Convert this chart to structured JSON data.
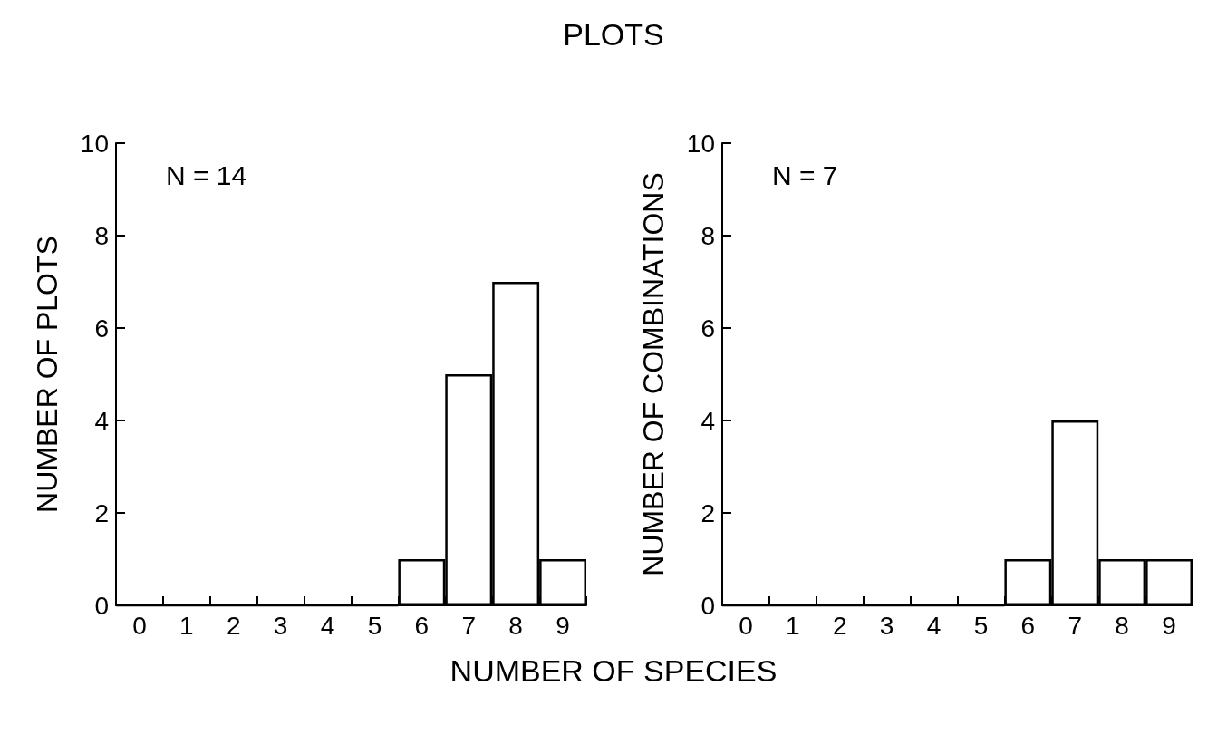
{
  "chart_data": [
    {
      "type": "bar",
      "title": "PLOTS",
      "xlabel": "NUMBER OF SPECIES",
      "ylabel": "NUMBER OF PLOTS",
      "annotations": [
        "N = 14"
      ],
      "categories": [
        "0",
        "1",
        "2",
        "3",
        "4",
        "5",
        "6",
        "7",
        "8",
        "9"
      ],
      "values": [
        0,
        0,
        0,
        0,
        0,
        0,
        1,
        5,
        7,
        1
      ],
      "color": "#000000",
      "ylim": [
        0,
        10
      ],
      "yticks": [
        0,
        2,
        4,
        6,
        8,
        10
      ],
      "grid": false
    },
    {
      "type": "bar",
      "ylabel": "NUMBER OF COMBINATIONS",
      "annotations": [
        "N = 7"
      ],
      "categories": [
        "0",
        "1",
        "2",
        "3",
        "4",
        "5",
        "6",
        "7",
        "8",
        "9"
      ],
      "values": [
        0,
        0,
        0,
        0,
        0,
        0,
        1,
        4,
        1,
        1
      ],
      "color": "#000000",
      "ylim": [
        0,
        10
      ],
      "yticks": [
        0,
        2,
        4,
        6,
        8,
        10
      ],
      "grid": false
    }
  ]
}
